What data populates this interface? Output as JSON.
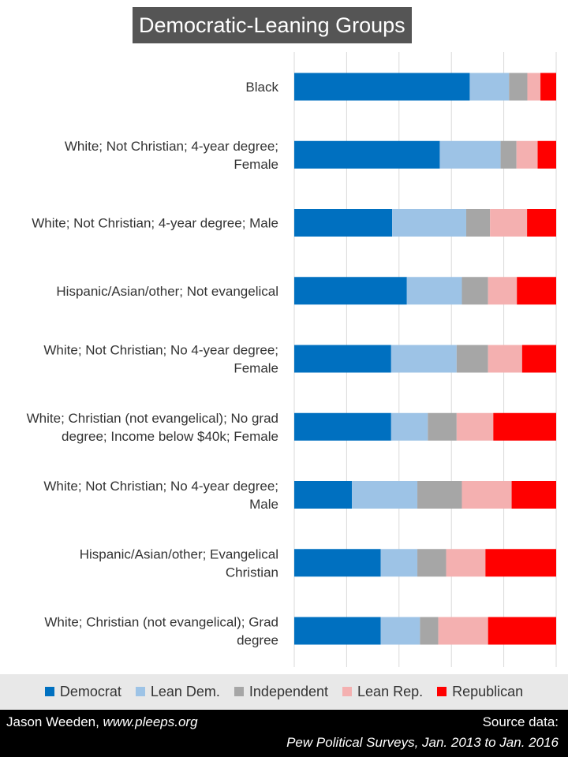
{
  "title": "Democratic-Leaning Groups",
  "chart_data": {
    "type": "bar",
    "orientation": "horizontal",
    "stacked": true,
    "normalized_percent": true,
    "categories": [
      [
        "Black"
      ],
      [
        "White; Not Christian; 4-year degree;",
        "Female"
      ],
      [
        "White; Not Christian; 4-year degree; Male"
      ],
      [
        "Hispanic/Asian/other; Not evangelical"
      ],
      [
        "White; Not Christian; No 4-year degree;",
        "Female"
      ],
      [
        "White; Christian (not evangelical); No grad",
        "degree; Income below $40k; Female"
      ],
      [
        "White; Not Christian; No 4-year degree;",
        "Male"
      ],
      [
        "Hispanic/Asian/other; Evangelical",
        "Christian"
      ],
      [
        "White; Christian (not evangelical); Grad",
        "degree"
      ]
    ],
    "series": [
      {
        "name": "Democrat",
        "color": "#0070c0",
        "values": [
          67,
          55,
          37,
          43,
          37,
          37,
          22,
          33,
          33
        ]
      },
      {
        "name": "Lean Dem.",
        "color": "#9dc3e6",
        "values": [
          15,
          23,
          28,
          21,
          25,
          14,
          25,
          14,
          15
        ]
      },
      {
        "name": "Independent",
        "color": "#a6a6a6",
        "values": [
          7,
          6,
          9,
          10,
          12,
          11,
          17,
          11,
          7
        ]
      },
      {
        "name": "Lean Rep.",
        "color": "#f4b0b0",
        "values": [
          5,
          8,
          14,
          11,
          13,
          14,
          19,
          15,
          19
        ]
      },
      {
        "name": "Republican",
        "color": "#ff0000",
        "values": [
          6,
          7,
          11,
          15,
          13,
          24,
          17,
          27,
          26
        ]
      }
    ],
    "xlim": [
      0,
      100
    ],
    "grid": true,
    "legend_position": "bottom"
  },
  "footer": {
    "author": "Jason Weeden, ",
    "site": "www.pleeps.org",
    "source_label": "Source data:",
    "source_text": "Pew  Political Surveys, Jan. 2013 to Jan. 2016"
  }
}
